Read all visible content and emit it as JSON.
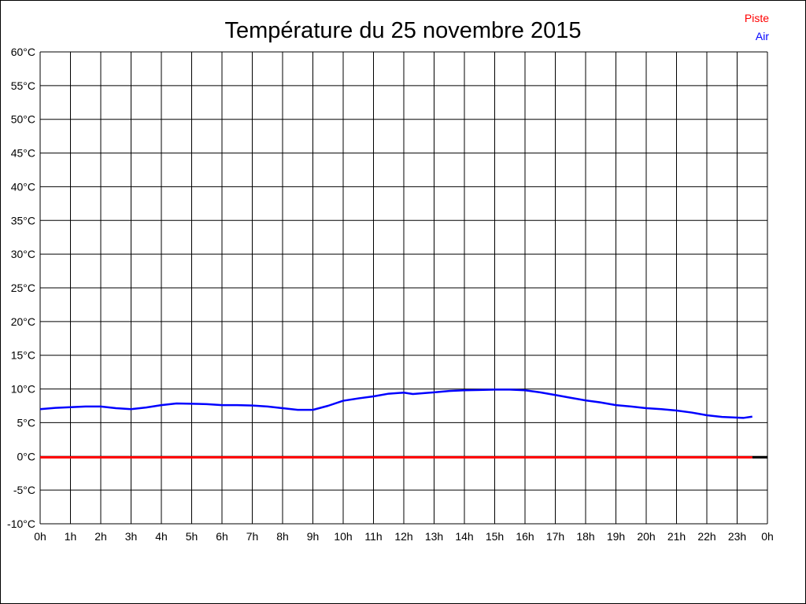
{
  "title": "Température du 25 novembre 2015",
  "legend": {
    "piste_label": "Piste",
    "air_label": "Air"
  },
  "colors": {
    "piste": "#ff0000",
    "air": "#0000ff",
    "grid": "#000000",
    "background": "#ffffff"
  },
  "chart_data": {
    "type": "line",
    "title": "Température du 25 novembre 2015",
    "xlabel": "",
    "ylabel": "",
    "xlim": [
      0,
      24
    ],
    "ylim": [
      -10,
      60
    ],
    "grid": true,
    "legend_position": "top-right",
    "x_tick_labels": [
      "0h",
      "1h",
      "2h",
      "3h",
      "4h",
      "5h",
      "6h",
      "7h",
      "8h",
      "9h",
      "10h",
      "11h",
      "12h",
      "13h",
      "14h",
      "15h",
      "16h",
      "17h",
      "18h",
      "19h",
      "20h",
      "21h",
      "22h",
      "23h",
      "0h"
    ],
    "x_tick_values": [
      0,
      1,
      2,
      3,
      4,
      5,
      6,
      7,
      8,
      9,
      10,
      11,
      12,
      13,
      14,
      15,
      16,
      17,
      18,
      19,
      20,
      21,
      22,
      23,
      24
    ],
    "y_tick_labels": [
      "60°C",
      "55°C",
      "50°C",
      "45°C",
      "40°C",
      "35°C",
      "30°C",
      "25°C",
      "20°C",
      "15°C",
      "10°C",
      "5°C",
      "0°C",
      "-5°C",
      "-10°C"
    ],
    "y_tick_values": [
      60,
      55,
      50,
      45,
      40,
      35,
      30,
      25,
      20,
      15,
      10,
      5,
      0,
      -5,
      -10
    ],
    "series": [
      {
        "name": "Piste",
        "color": "#ff0000",
        "width": 3,
        "x": [
          0,
          23.5
        ],
        "y": [
          0,
          0
        ]
      },
      {
        "name": "Air",
        "color": "#0000ff",
        "width": 2.5,
        "x": [
          0,
          0.5,
          1,
          1.5,
          2,
          2.5,
          3,
          3.5,
          4,
          4.5,
          5,
          5.5,
          6,
          6.5,
          7,
          7.5,
          8,
          8.5,
          9,
          9.5,
          10,
          10.5,
          11,
          11.5,
          12,
          12.3,
          12.7,
          13,
          13.5,
          14,
          14.5,
          15,
          15.5,
          16,
          16.5,
          17,
          17.5,
          18,
          18.5,
          19,
          19.5,
          20,
          20.5,
          21,
          21.5,
          22,
          22.5,
          23,
          23.2,
          23.5
        ],
        "y": [
          7.0,
          7.2,
          7.3,
          7.4,
          7.4,
          7.15,
          7.0,
          7.25,
          7.6,
          7.85,
          7.8,
          7.75,
          7.6,
          7.6,
          7.55,
          7.4,
          7.15,
          6.9,
          6.9,
          7.5,
          8.25,
          8.6,
          8.9,
          9.3,
          9.45,
          9.25,
          9.4,
          9.5,
          9.7,
          9.8,
          9.85,
          9.9,
          9.9,
          9.8,
          9.5,
          9.1,
          8.7,
          8.3,
          8.0,
          7.6,
          7.4,
          7.15,
          7.0,
          6.8,
          6.5,
          6.1,
          5.85,
          5.75,
          5.7,
          5.9
        ]
      }
    ],
    "zero_axis_extension": {
      "color": "#000000",
      "width": 3,
      "x": [
        23.5,
        24
      ],
      "y": [
        0,
        0
      ]
    }
  }
}
